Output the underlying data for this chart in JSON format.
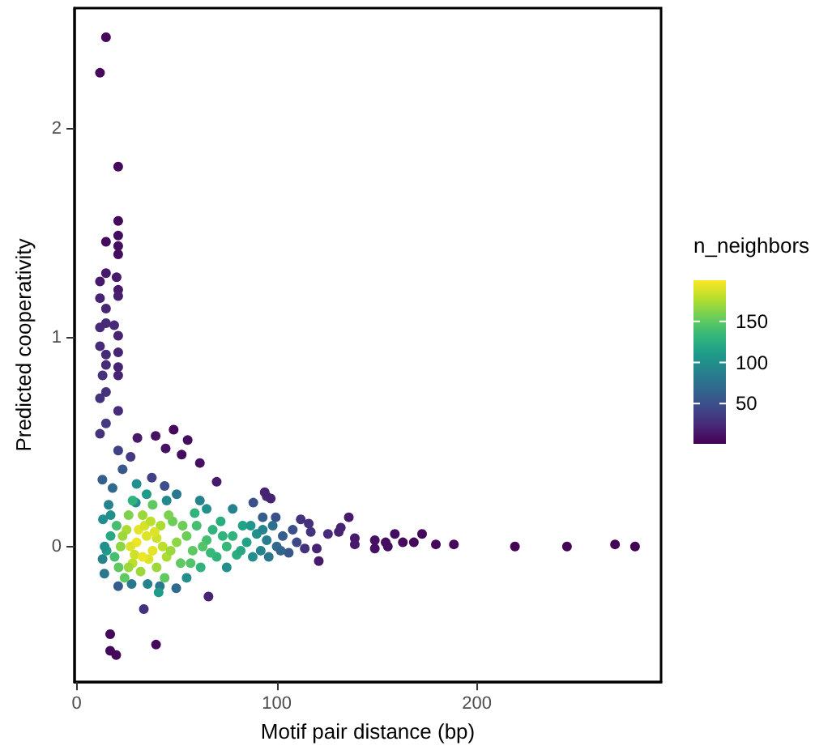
{
  "chart_data": {
    "type": "scatter",
    "xlabel": "Motif pair distance (bp)",
    "ylabel": "Predicted cooperativity",
    "clabel": "n_neighbors",
    "clim": [
      1,
      200
    ],
    "cticks": [
      50,
      100,
      150
    ],
    "xlim": [
      -1,
      292
    ],
    "ylim": [
      -0.65,
      2.58
    ],
    "xticks": [
      0,
      100,
      200
    ],
    "yticks": [
      0,
      1,
      2
    ],
    "grid": false,
    "marker": "circle",
    "series": [
      {
        "x": [
          14.7,
          11.7,
          20.8,
          20.8,
          20.8,
          14.7,
          20.8,
          20.8,
          14.7,
          11.7,
          20,
          20.8,
          20.8,
          11.7,
          14.7,
          14.7,
          11.7,
          18.8,
          20.8,
          20.8,
          14.7,
          11.7,
          14.7,
          20.8,
          13,
          20.8,
          14.7,
          11.7,
          20.8,
          14.7,
          11.7,
          30.4,
          39.5,
          48.5,
          55.5,
          44.5,
          52.5,
          61.6,
          70,
          20.8,
          27,
          23,
          37.6,
          44,
          12.9,
          88.3,
          95,
          29.6,
          61.6,
          13.2,
          136,
          120,
          121,
          13,
          13.9,
          20.8,
          27.5,
          35.5,
          41.6,
          49.8,
          65.9,
          33.6,
          16.8,
          16.8,
          19.8,
          39.7,
          94,
          97,
          93,
          99.5,
          112,
          116,
          117,
          125.6,
          131,
          132,
          139,
          139,
          149,
          149,
          154.4,
          155.5,
          159,
          163,
          168.5,
          172.6,
          179.5,
          188.5,
          219,
          245,
          269,
          279,
          114,
          30,
          35,
          38,
          25,
          28,
          42,
          33,
          45,
          22,
          32,
          40,
          26,
          20,
          19,
          50,
          48,
          52,
          55,
          58,
          38,
          24,
          44,
          60,
          62,
          65,
          68,
          70,
          72,
          75,
          78,
          80,
          83,
          85,
          88,
          90,
          92,
          95,
          98,
          100,
          103,
          106,
          108,
          110,
          16,
          17,
          15,
          30,
          50,
          65,
          78,
          55,
          75,
          18,
          35,
          45,
          27,
          31,
          36,
          34,
          29,
          40,
          23,
          37,
          43,
          47,
          26,
          33,
          39,
          21,
          53,
          57,
          46,
          63,
          67,
          73,
          82,
          87,
          93,
          96,
          102,
          59,
          41,
          28,
          17,
          14
        ],
        "values": [
          2.44,
          2.27,
          1.82,
          1.56,
          1.49,
          1.46,
          1.44,
          1.4,
          1.31,
          1.27,
          1.29,
          1.23,
          1.2,
          1.19,
          1.14,
          1.07,
          1.05,
          1.06,
          1.01,
          0.93,
          0.92,
          0.96,
          0.87,
          0.86,
          0.82,
          0.82,
          0.74,
          0.71,
          0.65,
          0.59,
          0.54,
          0.52,
          0.53,
          0.56,
          0.51,
          0.47,
          0.44,
          0.4,
          0.31,
          0.46,
          0.43,
          0.37,
          0.33,
          0.29,
          0.32,
          0.21,
          0.24,
          0.21,
          0.22,
          0.13,
          0.14,
          -0.01,
          -0.07,
          -0.06,
          -0.13,
          -0.19,
          -0.18,
          -0.18,
          -0.19,
          -0.2,
          -0.24,
          -0.3,
          -0.42,
          -0.5,
          -0.52,
          -0.47,
          0.26,
          0.23,
          0.14,
          0.14,
          0.13,
          0.11,
          0.07,
          0.06,
          0.07,
          0.09,
          0.04,
          0.01,
          0.03,
          -0.01,
          0.02,
          0,
          0.06,
          0.02,
          0.02,
          0.06,
          0.01,
          0.01,
          0,
          0,
          0.01,
          0,
          -0.01,
          0.02,
          0.05,
          -0.02,
          0.08,
          -0.08,
          0.1,
          0.15,
          -0.05,
          0,
          -0.12,
          -0.1,
          0.15,
          0.1,
          -0.05,
          0.02,
          0.12,
          -0.08,
          0.05,
          -0.02,
          0.2,
          -0.15,
          -0.15,
          0.1,
          -0.1,
          0.03,
          0.08,
          -0.05,
          0.12,
          0,
          0.05,
          -0.04,
          0.1,
          0.02,
          -0.05,
          0.06,
          -0.02,
          0.03,
          0.1,
          0,
          0.05,
          -0.03,
          0.08,
          0.02,
          0.2,
          0.05,
          -0.02,
          0.3,
          0.25,
          0.18,
          0.18,
          -0.15,
          -0.1,
          0.28,
          0.25,
          0.22,
          0,
          0.08,
          -0.06,
          0.1,
          -0.04,
          0.04,
          0.05,
          0.12,
          0,
          -0.02,
          -0.1,
          -0.05,
          0.07,
          -0.1,
          0.1,
          -0.08,
          0.15,
          0,
          -0.03,
          0.05,
          -0.02,
          0.1,
          0.08,
          -0.05,
          -0.02,
          0.16,
          -0.22,
          0.22,
          0.15,
          0
        ],
        "cvalues": [
          5,
          5,
          5,
          5,
          8,
          8,
          8,
          8,
          15,
          15,
          15,
          15,
          18,
          20,
          22,
          25,
          25,
          25,
          20,
          20,
          25,
          25,
          25,
          20,
          30,
          20,
          30,
          30,
          25,
          35,
          30,
          15,
          10,
          5,
          8,
          10,
          8,
          10,
          15,
          40,
          35,
          55,
          40,
          50,
          60,
          50,
          25,
          100,
          90,
          100,
          15,
          20,
          15,
          90,
          80,
          60,
          80,
          90,
          80,
          70,
          20,
          30,
          5,
          5,
          5,
          5,
          20,
          20,
          60,
          50,
          30,
          30,
          30,
          25,
          20,
          20,
          15,
          15,
          10,
          10,
          8,
          8,
          8,
          5,
          5,
          5,
          5,
          5,
          3,
          3,
          3,
          3,
          30,
          195,
          190,
          192,
          175,
          180,
          175,
          170,
          175,
          165,
          170,
          170,
          160,
          140,
          140,
          165,
          155,
          150,
          155,
          150,
          150,
          150,
          150,
          140,
          130,
          140,
          130,
          130,
          125,
          135,
          130,
          125,
          115,
          115,
          100,
          100,
          90,
          85,
          75,
          70,
          60,
          55,
          50,
          45,
          90,
          120,
          110,
          100,
          80,
          100,
          90,
          100,
          100,
          70,
          110,
          95,
          190,
          192,
          190,
          188,
          185,
          185,
          170,
          180,
          180,
          170,
          170,
          195,
          190,
          150,
          155,
          145,
          160,
          145,
          135,
          130,
          120,
          105,
          90,
          80,
          65,
          130,
          110,
          130,
          100,
          100
        ]
      }
    ]
  }
}
